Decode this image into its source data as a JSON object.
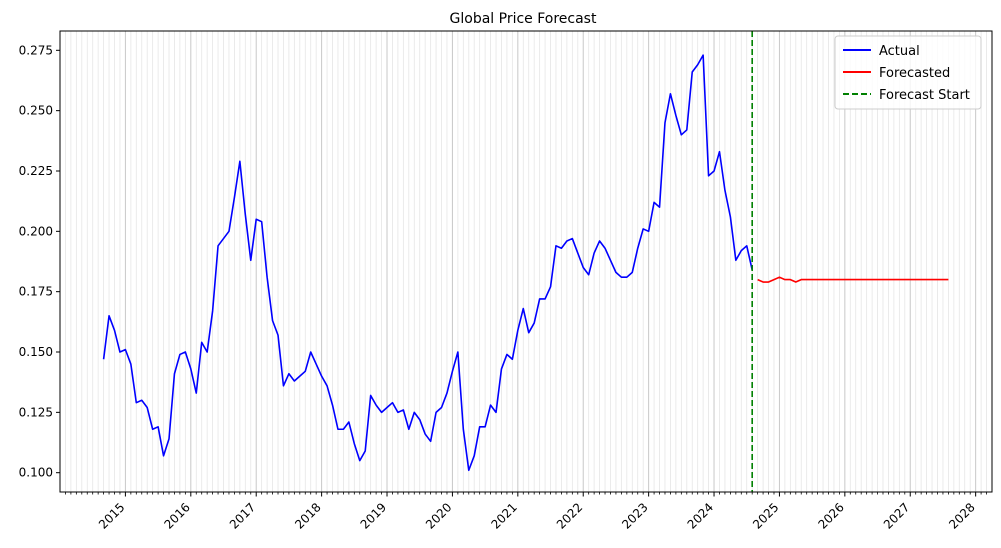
{
  "chart_data": {
    "type": "line",
    "title": "Global Price Forecast",
    "xlabel": "",
    "ylabel": "",
    "x_range": [
      "2014-01",
      "2028-04"
    ],
    "ylim": [
      0.092,
      0.283
    ],
    "y_ticks": [
      0.1,
      0.125,
      0.15,
      0.175,
      0.2,
      0.225,
      0.25,
      0.275
    ],
    "y_tick_labels": [
      "0.100",
      "0.125",
      "0.150",
      "0.175",
      "0.200",
      "0.225",
      "0.250",
      "0.275"
    ],
    "x_ticks": [
      "2015-01",
      "2016-01",
      "2017-01",
      "2018-01",
      "2019-01",
      "2020-01",
      "2021-01",
      "2022-01",
      "2023-01",
      "2024-01",
      "2025-01",
      "2026-01",
      "2027-01",
      "2028-01"
    ],
    "x_tick_labels": [
      "2015",
      "2016",
      "2017",
      "2018",
      "2019",
      "2020",
      "2021",
      "2022",
      "2023",
      "2024",
      "2025",
      "2026",
      "2027",
      "2028"
    ],
    "grid": "vertical monthly minor gridlines",
    "legend": "top-right",
    "forecast_start": "2024-08",
    "series": [
      {
        "name": "Actual",
        "color": "#0000ff",
        "style": "solid",
        "x": [
          "2014-09",
          "2014-10",
          "2014-11",
          "2014-12",
          "2015-01",
          "2015-02",
          "2015-03",
          "2015-04",
          "2015-05",
          "2015-06",
          "2015-07",
          "2015-08",
          "2015-09",
          "2015-10",
          "2015-11",
          "2015-12",
          "2016-01",
          "2016-02",
          "2016-03",
          "2016-04",
          "2016-05",
          "2016-06",
          "2016-07",
          "2016-08",
          "2016-09",
          "2016-10",
          "2016-11",
          "2016-12",
          "2017-01",
          "2017-02",
          "2017-03",
          "2017-04",
          "2017-05",
          "2017-06",
          "2017-07",
          "2017-08",
          "2017-09",
          "2017-10",
          "2017-11",
          "2017-12",
          "2018-01",
          "2018-02",
          "2018-03",
          "2018-04",
          "2018-05",
          "2018-06",
          "2018-07",
          "2018-08",
          "2018-09",
          "2018-10",
          "2018-11",
          "2018-12",
          "2019-01",
          "2019-02",
          "2019-03",
          "2019-04",
          "2019-05",
          "2019-06",
          "2019-07",
          "2019-08",
          "2019-09",
          "2019-10",
          "2019-11",
          "2019-12",
          "2020-01",
          "2020-02",
          "2020-03",
          "2020-04",
          "2020-05",
          "2020-06",
          "2020-07",
          "2020-08",
          "2020-09",
          "2020-10",
          "2020-11",
          "2020-12",
          "2021-01",
          "2021-02",
          "2021-03",
          "2021-04",
          "2021-05",
          "2021-06",
          "2021-07",
          "2021-08",
          "2021-09",
          "2021-10",
          "2021-11",
          "2021-12",
          "2022-01",
          "2022-02",
          "2022-03",
          "2022-04",
          "2022-05",
          "2022-06",
          "2022-07",
          "2022-08",
          "2022-09",
          "2022-10",
          "2022-11",
          "2022-12",
          "2023-01",
          "2023-02",
          "2023-03",
          "2023-04",
          "2023-05",
          "2023-06",
          "2023-07",
          "2023-08",
          "2023-09",
          "2023-10",
          "2023-11",
          "2023-12",
          "2024-01",
          "2024-02",
          "2024-03",
          "2024-04",
          "2024-05",
          "2024-06",
          "2024-07",
          "2024-08"
        ],
        "values": [
          0.147,
          0.165,
          0.159,
          0.15,
          0.151,
          0.145,
          0.129,
          0.13,
          0.127,
          0.118,
          0.119,
          0.107,
          0.114,
          0.141,
          0.149,
          0.15,
          0.143,
          0.133,
          0.154,
          0.15,
          0.167,
          0.194,
          0.197,
          0.2,
          0.214,
          0.229,
          0.207,
          0.188,
          0.205,
          0.204,
          0.181,
          0.163,
          0.157,
          0.136,
          0.141,
          0.138,
          0.14,
          0.142,
          0.15,
          0.145,
          0.14,
          0.136,
          0.128,
          0.118,
          0.118,
          0.121,
          0.112,
          0.105,
          0.109,
          0.132,
          0.128,
          0.125,
          0.127,
          0.129,
          0.125,
          0.126,
          0.118,
          0.125,
          0.122,
          0.116,
          0.113,
          0.125,
          0.127,
          0.133,
          0.142,
          0.15,
          0.118,
          0.101,
          0.107,
          0.119,
          0.119,
          0.128,
          0.125,
          0.143,
          0.149,
          0.147,
          0.159,
          0.168,
          0.158,
          0.162,
          0.172,
          0.172,
          0.177,
          0.194,
          0.193,
          0.196,
          0.197,
          0.191,
          0.185,
          0.182,
          0.191,
          0.196,
          0.193,
          0.188,
          0.183,
          0.181,
          0.181,
          0.183,
          0.193,
          0.201,
          0.2,
          0.212,
          0.21,
          0.245,
          0.257,
          0.248,
          0.24,
          0.242,
          0.266,
          0.269,
          0.273,
          0.223,
          0.225,
          0.233,
          0.217,
          0.206,
          0.188,
          0.192,
          0.194,
          0.184
        ]
      },
      {
        "name": "Forecasted",
        "color": "#ff0000",
        "style": "solid",
        "x": [
          "2024-09",
          "2024-10",
          "2024-11",
          "2024-12",
          "2025-01",
          "2025-02",
          "2025-03",
          "2025-04",
          "2025-05",
          "2025-06",
          "2025-07",
          "2025-08",
          "2025-09",
          "2025-10",
          "2025-11",
          "2025-12",
          "2026-01",
          "2026-02",
          "2026-03",
          "2026-04",
          "2026-05",
          "2026-06",
          "2026-07",
          "2026-08",
          "2026-09",
          "2026-10",
          "2026-11",
          "2026-12",
          "2027-01",
          "2027-02",
          "2027-03",
          "2027-04",
          "2027-05",
          "2027-06",
          "2027-07",
          "2027-08"
        ],
        "values": [
          0.18,
          0.179,
          0.179,
          0.18,
          0.181,
          0.18,
          0.18,
          0.179,
          0.18,
          0.18,
          0.18,
          0.18,
          0.18,
          0.18,
          0.18,
          0.18,
          0.18,
          0.18,
          0.18,
          0.18,
          0.18,
          0.18,
          0.18,
          0.18,
          0.18,
          0.18,
          0.18,
          0.18,
          0.18,
          0.18,
          0.18,
          0.18,
          0.18,
          0.18,
          0.18,
          0.18
        ]
      }
    ],
    "legend_entries": [
      {
        "label": "Actual",
        "color": "#0000ff",
        "style": "solid"
      },
      {
        "label": "Forecasted",
        "color": "#ff0000",
        "style": "solid"
      },
      {
        "label": "Forecast Start",
        "color": "#008000",
        "style": "dashed"
      }
    ]
  }
}
